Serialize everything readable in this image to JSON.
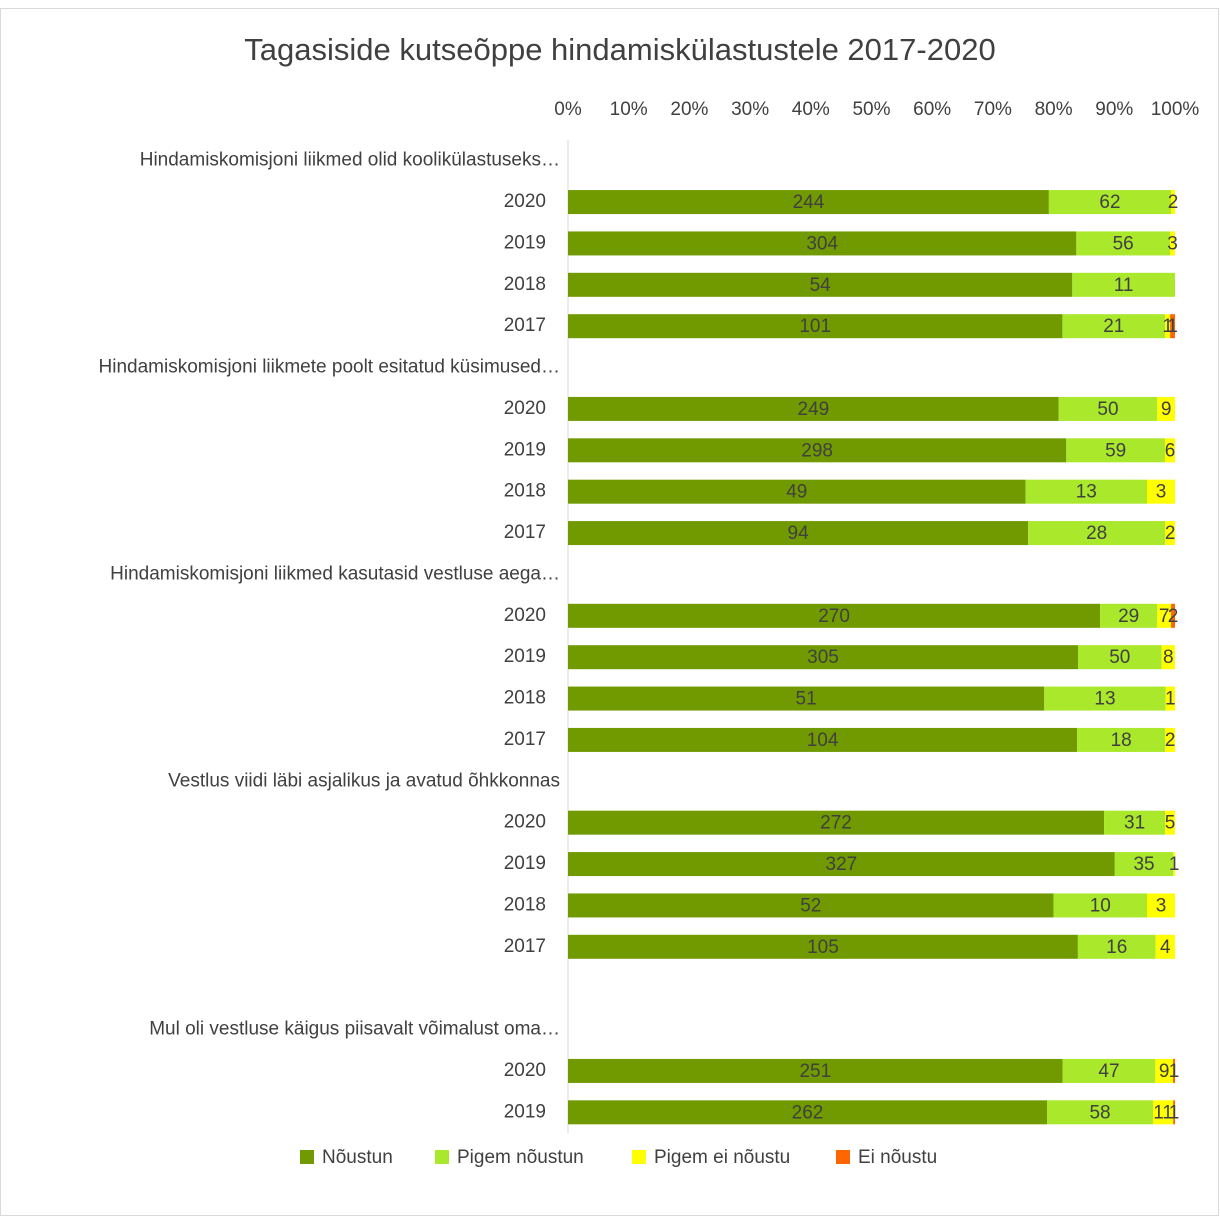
{
  "chart_data": {
    "type": "bar",
    "orientation": "horizontal",
    "stacked": "percent",
    "title": "Tagasiside kutseõppe hindamiskülastustele 2017-2020",
    "categories": [
      "Hindamiskomisjoni liikmed olid koolikülastuseks…",
      "2020",
      "2019",
      "2018",
      "2017",
      "Hindamiskomisjoni liikmete poolt esitatud küsimused…",
      "2020",
      "2019",
      "2018",
      "2017",
      "Hindamiskomisjoni liikmed kasutasid vestluse aega…",
      "2020",
      "2019",
      "2018",
      "2017",
      "Vestlus viidi läbi asjalikus ja avatud õhkkonnas",
      "2020",
      "2019",
      "2018",
      "2017",
      null,
      "Mul oli vestluse käigus piisavalt võimalust oma…",
      "2020",
      "2019"
    ],
    "series": [
      {
        "name": "Nõustun",
        "color": "#709a00",
        "values": [
          null,
          244,
          304,
          54,
          101,
          null,
          249,
          298,
          49,
          94,
          null,
          270,
          305,
          51,
          104,
          null,
          272,
          327,
          52,
          105,
          null,
          null,
          251,
          262
        ]
      },
      {
        "name": "Pigem nõustun",
        "color": "#a9e82a",
        "values": [
          null,
          62,
          56,
          11,
          21,
          null,
          50,
          59,
          13,
          28,
          null,
          29,
          50,
          13,
          18,
          null,
          31,
          35,
          10,
          16,
          null,
          null,
          47,
          58
        ]
      },
      {
        "name": "Pigem ei nõustu",
        "color": "#ffff00",
        "values": [
          null,
          2,
          3,
          null,
          1,
          null,
          9,
          6,
          3,
          2,
          null,
          7,
          8,
          1,
          2,
          null,
          5,
          1,
          3,
          4,
          null,
          null,
          9,
          11
        ]
      },
      {
        "name": "Ei nõustu",
        "color": "#ff6600",
        "values": [
          null,
          null,
          null,
          null,
          1,
          null,
          null,
          null,
          null,
          null,
          null,
          2,
          null,
          null,
          null,
          null,
          null,
          null,
          null,
          null,
          null,
          null,
          1,
          1
        ]
      }
    ],
    "xlim": [
      0,
      100
    ],
    "xticks": [
      {
        "value": 0,
        "label": "0%"
      },
      {
        "value": 10,
        "label": "10%"
      },
      {
        "value": 20,
        "label": "20%"
      },
      {
        "value": 30,
        "label": "30%"
      },
      {
        "value": 40,
        "label": "40%"
      },
      {
        "value": 50,
        "label": "50%"
      },
      {
        "value": 60,
        "label": "60%"
      },
      {
        "value": 70,
        "label": "70%"
      },
      {
        "value": 80,
        "label": "80%"
      },
      {
        "value": 90,
        "label": "90%"
      },
      {
        "value": 100,
        "label": "100%"
      }
    ],
    "legend": "bottom"
  }
}
